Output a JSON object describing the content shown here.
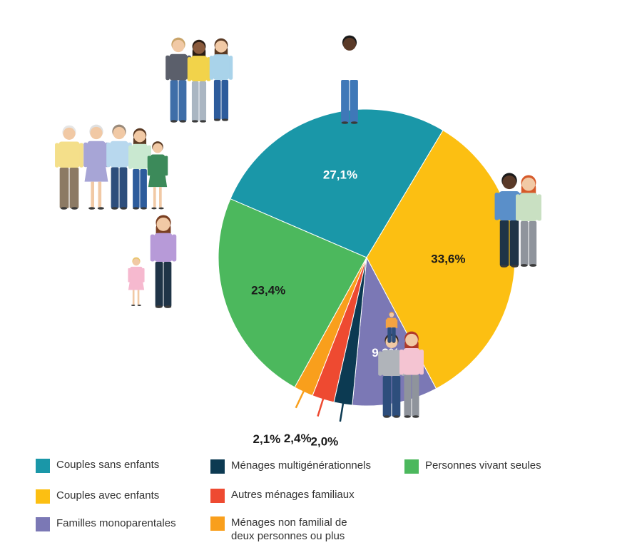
{
  "chart_data": {
    "type": "pie",
    "slices": [
      {
        "name": "Personnes vivant seules",
        "value": 23.4,
        "label": "23,4%",
        "color": "#4cb85d",
        "label_color": "#1a1a1a"
      },
      {
        "name": "Couples sans enfants",
        "value": 27.1,
        "label": "27,1%",
        "color": "#1a97a8",
        "label_color": "#ffffff"
      },
      {
        "name": "Couples avec enfants",
        "value": 33.6,
        "label": "33,6%",
        "color": "#fcbf12",
        "label_color": "#1a1a1a"
      },
      {
        "name": "Familles monoparentales",
        "value": 9.3,
        "label": "9,3%",
        "color": "#7b78b5",
        "label_color": "#ffffff"
      },
      {
        "name": "Ménages multigénérationnels",
        "value": 2.0,
        "label": "2,0%",
        "color": "#0c3a52",
        "label_color": "#1a1a1a"
      },
      {
        "name": "Autres ménages familiaux",
        "value": 2.4,
        "label": "2,4%",
        "color": "#ee4a31",
        "label_color": "#1a1a1a"
      },
      {
        "name": "Ménages non familial de deux personnes ou plus",
        "value": 2.1,
        "label": "2,1%",
        "color": "#f99f1c",
        "label_color": "#1a1a1a"
      }
    ]
  },
  "legend": [
    {
      "label": "Couples sans enfants",
      "color": "#1a97a8"
    },
    {
      "label": "Couples avec enfants",
      "color": "#fcbf12"
    },
    {
      "label": "Familles monoparentales",
      "color": "#7b78b5"
    },
    {
      "label": "Ménages multigénérationnels",
      "color": "#0c3a52"
    },
    {
      "label": "Autres ménages familiaux",
      "color": "#ee4a31"
    },
    {
      "label": "Ménages non familial de\ndeux personnes ou plus",
      "color": "#f99f1c"
    },
    {
      "label": "Personnes vivant seules",
      "color": "#4cb85d"
    }
  ],
  "illustrations": [
    {
      "name": "adult-trio-illustration"
    },
    {
      "name": "multigenerational-family-illustration"
    },
    {
      "name": "single-parent-family-illustration"
    },
    {
      "name": "person-alone-illustration"
    },
    {
      "name": "couple-illustration"
    },
    {
      "name": "family-with-children-illustration"
    }
  ]
}
